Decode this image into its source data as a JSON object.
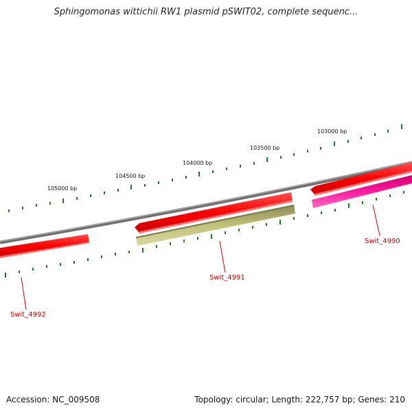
{
  "title": "Sphingomonas wittichii RW1 plasmid pSWIT02, complete sequenc...",
  "footer": {
    "accession": "Accession: NC_009508",
    "summary": "Topology: circular; Length: 222,757 bp; Genes: 210"
  },
  "scale_labels": [
    "105000 bp",
    "104500 bp",
    "104000 bp",
    "103500 bp",
    "103000 bp"
  ],
  "genes": [
    {
      "name": "Swit_4992",
      "color": "#ff1a1a"
    },
    {
      "name": "Swit_4991",
      "color": "#b8b870"
    },
    {
      "name": "Swit_4990",
      "color": "#ff1a9e"
    }
  ],
  "colors": {
    "backbone": "#7f7f7f",
    "ticks": "#1e7a1e",
    "forward_gene": "#ff1a1a",
    "label_text": "#cc0000"
  }
}
